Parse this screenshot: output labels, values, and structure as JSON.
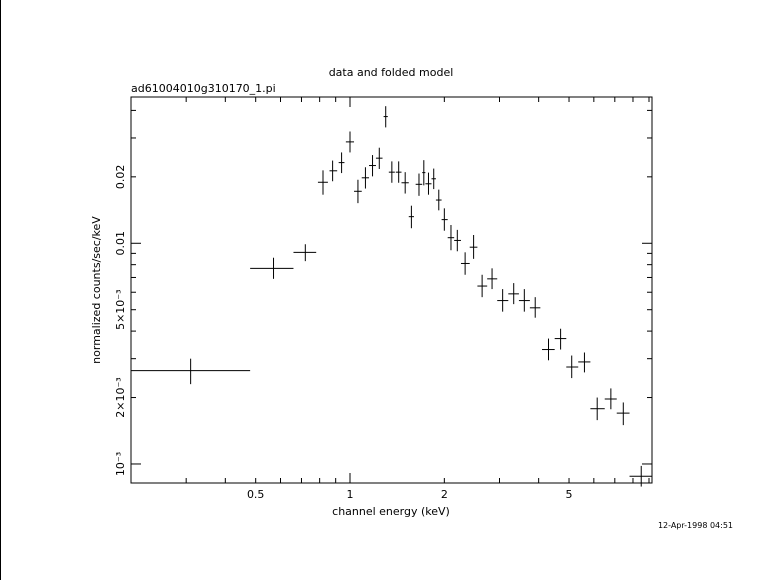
{
  "chart_data": {
    "type": "scatter",
    "title": "data and folded model",
    "subtitle": "ad61004010g310170_1.pi",
    "xlabel": "channel energy (keV)",
    "ylabel": "normalized counts/sec/keV",
    "xscale": "log",
    "yscale": "log",
    "xlim": [
      0.2,
      9.2
    ],
    "ylim": [
      0.00082,
      0.046
    ],
    "x_ticks": [
      {
        "value": 0.5,
        "label": "0.5"
      },
      {
        "value": 1,
        "label": "1"
      },
      {
        "value": 2,
        "label": "2"
      },
      {
        "value": 5,
        "label": "5"
      }
    ],
    "y_ticks": [
      {
        "value": 0.001,
        "label": "10⁻³"
      },
      {
        "value": 0.002,
        "label": "2×10⁻³"
      },
      {
        "value": 0.005,
        "label": "5×10⁻³"
      },
      {
        "value": 0.01,
        "label": "0.01"
      },
      {
        "value": 0.02,
        "label": "0.02"
      }
    ],
    "series": [
      {
        "points": [
          {
            "x": 0.31,
            "xlo": 0.2,
            "xhi": 0.48,
            "y": 0.00265,
            "ylo": 0.0023,
            "yhi": 0.003
          },
          {
            "x": 0.57,
            "xlo": 0.48,
            "xhi": 0.66,
            "y": 0.0077,
            "ylo": 0.0069,
            "yhi": 0.0086
          },
          {
            "x": 0.72,
            "xlo": 0.66,
            "xhi": 0.78,
            "y": 0.0091,
            "ylo": 0.0083,
            "yhi": 0.0099
          },
          {
            "x": 0.82,
            "xlo": 0.79,
            "xhi": 0.85,
            "y": 0.0189,
            "ylo": 0.0166,
            "yhi": 0.0214
          },
          {
            "x": 0.88,
            "xlo": 0.86,
            "xhi": 0.91,
            "y": 0.0213,
            "ylo": 0.0191,
            "yhi": 0.0237
          },
          {
            "x": 0.94,
            "xlo": 0.92,
            "xhi": 0.96,
            "y": 0.0232,
            "ylo": 0.0208,
            "yhi": 0.0258
          },
          {
            "x": 1.0,
            "xlo": 0.97,
            "xhi": 1.03,
            "y": 0.0288,
            "ylo": 0.0258,
            "yhi": 0.0321
          },
          {
            "x": 1.06,
            "xlo": 1.03,
            "xhi": 1.09,
            "y": 0.0172,
            "ylo": 0.0152,
            "yhi": 0.0194
          },
          {
            "x": 1.12,
            "xlo": 1.09,
            "xhi": 1.15,
            "y": 0.0198,
            "ylo": 0.0177,
            "yhi": 0.0221
          },
          {
            "x": 1.18,
            "xlo": 1.15,
            "xhi": 1.21,
            "y": 0.0225,
            "ylo": 0.0201,
            "yhi": 0.0251
          },
          {
            "x": 1.24,
            "xlo": 1.21,
            "xhi": 1.27,
            "y": 0.0243,
            "ylo": 0.0217,
            "yhi": 0.0271
          },
          {
            "x": 1.3,
            "xlo": 1.28,
            "xhi": 1.32,
            "y": 0.0375,
            "ylo": 0.0335,
            "yhi": 0.0418
          },
          {
            "x": 1.36,
            "xlo": 1.33,
            "xhi": 1.39,
            "y": 0.021,
            "ylo": 0.0188,
            "yhi": 0.0235
          },
          {
            "x": 1.43,
            "xlo": 1.4,
            "xhi": 1.46,
            "y": 0.021,
            "ylo": 0.0188,
            "yhi": 0.0235
          },
          {
            "x": 1.5,
            "xlo": 1.46,
            "xhi": 1.54,
            "y": 0.0188,
            "ylo": 0.0168,
            "yhi": 0.021
          },
          {
            "x": 1.57,
            "xlo": 1.54,
            "xhi": 1.6,
            "y": 0.0132,
            "ylo": 0.0117,
            "yhi": 0.0148
          },
          {
            "x": 1.66,
            "xlo": 1.62,
            "xhi": 1.7,
            "y": 0.0185,
            "ylo": 0.0164,
            "yhi": 0.0207
          },
          {
            "x": 1.72,
            "xlo": 1.7,
            "xhi": 1.74,
            "y": 0.0209,
            "ylo": 0.0183,
            "yhi": 0.0238
          },
          {
            "x": 1.78,
            "xlo": 1.74,
            "xhi": 1.82,
            "y": 0.0186,
            "ylo": 0.0166,
            "yhi": 0.0209
          },
          {
            "x": 1.85,
            "xlo": 1.82,
            "xhi": 1.88,
            "y": 0.0196,
            "ylo": 0.0176,
            "yhi": 0.0218
          },
          {
            "x": 1.92,
            "xlo": 1.88,
            "xhi": 1.96,
            "y": 0.0157,
            "ylo": 0.0141,
            "yhi": 0.0175
          },
          {
            "x": 2.0,
            "xlo": 1.96,
            "xhi": 2.05,
            "y": 0.0128,
            "ylo": 0.0114,
            "yhi": 0.0144
          },
          {
            "x": 2.1,
            "xlo": 2.05,
            "xhi": 2.15,
            "y": 0.0106,
            "ylo": 0.0093,
            "yhi": 0.0121
          },
          {
            "x": 2.2,
            "xlo": 2.15,
            "xhi": 2.26,
            "y": 0.0103,
            "ylo": 0.0092,
            "yhi": 0.0115
          },
          {
            "x": 2.33,
            "xlo": 2.26,
            "xhi": 2.41,
            "y": 0.0081,
            "ylo": 0.0072,
            "yhi": 0.0091
          },
          {
            "x": 2.48,
            "xlo": 2.41,
            "xhi": 2.55,
            "y": 0.0096,
            "ylo": 0.0085,
            "yhi": 0.0109
          },
          {
            "x": 2.64,
            "xlo": 2.55,
            "xhi": 2.74,
            "y": 0.0064,
            "ylo": 0.0057,
            "yhi": 0.0072
          },
          {
            "x": 2.84,
            "xlo": 2.74,
            "xhi": 2.95,
            "y": 0.0069,
            "ylo": 0.0062,
            "yhi": 0.0077
          },
          {
            "x": 3.07,
            "xlo": 2.95,
            "xhi": 3.2,
            "y": 0.0055,
            "ylo": 0.0049,
            "yhi": 0.0062
          },
          {
            "x": 3.33,
            "xlo": 3.2,
            "xhi": 3.46,
            "y": 0.0059,
            "ylo": 0.0053,
            "yhi": 0.0066
          },
          {
            "x": 3.6,
            "xlo": 3.46,
            "xhi": 3.75,
            "y": 0.0055,
            "ylo": 0.0049,
            "yhi": 0.0062
          },
          {
            "x": 3.9,
            "xlo": 3.75,
            "xhi": 4.05,
            "y": 0.0051,
            "ylo": 0.0046,
            "yhi": 0.0057
          },
          {
            "x": 4.3,
            "xlo": 4.1,
            "xhi": 4.5,
            "y": 0.0033,
            "ylo": 0.00295,
            "yhi": 0.0037
          },
          {
            "x": 4.7,
            "xlo": 4.5,
            "xhi": 4.9,
            "y": 0.0037,
            "ylo": 0.0033,
            "yhi": 0.0041
          },
          {
            "x": 5.1,
            "xlo": 4.9,
            "xhi": 5.35,
            "y": 0.00275,
            "ylo": 0.00245,
            "yhi": 0.0031
          },
          {
            "x": 5.6,
            "xlo": 5.35,
            "xhi": 5.85,
            "y": 0.0029,
            "ylo": 0.0026,
            "yhi": 0.0032
          },
          {
            "x": 6.15,
            "xlo": 5.85,
            "xhi": 6.5,
            "y": 0.00178,
            "ylo": 0.00158,
            "yhi": 0.002
          },
          {
            "x": 6.8,
            "xlo": 6.5,
            "xhi": 7.1,
            "y": 0.00197,
            "ylo": 0.00177,
            "yhi": 0.0022
          },
          {
            "x": 7.45,
            "xlo": 7.1,
            "xhi": 7.8,
            "y": 0.0017,
            "ylo": 0.0015,
            "yhi": 0.0019
          },
          {
            "x": 8.5,
            "xlo": 7.8,
            "xhi": 9.2,
            "y": 0.00088,
            "ylo": 0.00079,
            "yhi": 0.00098
          }
        ]
      }
    ],
    "grid": false,
    "legend": "none"
  },
  "footer": {
    "timestamp": "12-Apr-1998 04:51"
  }
}
